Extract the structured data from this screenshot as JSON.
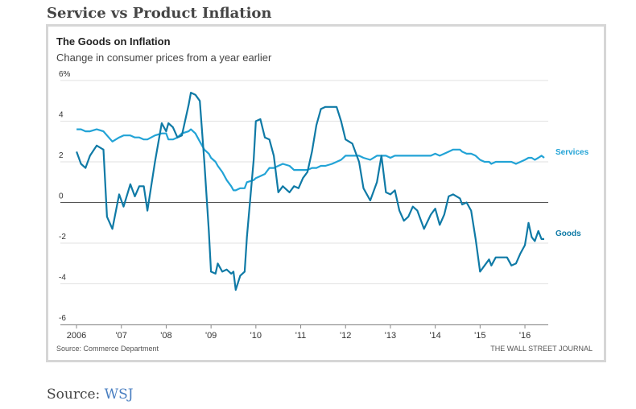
{
  "heading": "Service vs Product Inflation",
  "footer": {
    "label": "Source:",
    "link": "WSJ"
  },
  "chart_data": {
    "type": "line",
    "title": "The Goods on Inflation",
    "subtitle": "Change in consumer prices from a year earlier",
    "source": "Source: Commerce Department",
    "credit": "THE WALL STREET JOURNAL",
    "x": [
      2006.0,
      2006.1,
      2006.2,
      2006.3,
      2006.45,
      2006.6,
      2006.68,
      2006.8,
      2006.95,
      2007.05,
      2007.2,
      2007.3,
      2007.4,
      2007.5,
      2007.58,
      2007.75,
      2007.9,
      2008.0,
      2008.05,
      2008.15,
      2008.25,
      2008.35,
      2008.5,
      2008.55,
      2008.65,
      2008.75,
      2008.85,
      2008.95,
      2009.0,
      2009.1,
      2009.15,
      2009.25,
      2009.35,
      2009.45,
      2009.5,
      2009.55,
      2009.65,
      2009.75,
      2009.8,
      2009.95,
      2010.0,
      2010.1,
      2010.2,
      2010.3,
      2010.4,
      2010.5,
      2010.6,
      2010.75,
      2010.85,
      2010.95,
      2011.05,
      2011.15,
      2011.25,
      2011.35,
      2011.45,
      2011.55,
      2011.7,
      2011.8,
      2011.9,
      2012.0,
      2012.15,
      2012.3,
      2012.4,
      2012.55,
      2012.7,
      2012.8,
      2012.9,
      2013.0,
      2013.1,
      2013.2,
      2013.3,
      2013.4,
      2013.5,
      2013.6,
      2013.75,
      2013.9,
      2014.0,
      2014.1,
      2014.2,
      2014.3,
      2014.4,
      2014.55,
      2014.6,
      2014.7,
      2014.8,
      2014.9,
      2015.0,
      2015.1,
      2015.2,
      2015.25,
      2015.35,
      2015.5,
      2015.6,
      2015.7,
      2015.8,
      2015.9,
      2016.0,
      2016.08,
      2016.15,
      2016.22,
      2016.3,
      2016.37,
      2016.43
    ],
    "series": [
      {
        "name": "Services",
        "color": "#22a3d6",
        "values": [
          3.6,
          3.6,
          3.5,
          3.5,
          3.6,
          3.5,
          3.3,
          3.0,
          3.2,
          3.3,
          3.3,
          3.2,
          3.2,
          3.1,
          3.1,
          3.3,
          3.4,
          3.4,
          3.1,
          3.1,
          3.2,
          3.4,
          3.5,
          3.6,
          3.4,
          3.0,
          2.6,
          2.4,
          2.2,
          2.0,
          1.8,
          1.5,
          1.1,
          0.8,
          0.6,
          0.6,
          0.7,
          0.7,
          1.0,
          1.1,
          1.2,
          1.3,
          1.4,
          1.7,
          1.7,
          1.8,
          1.9,
          1.8,
          1.6,
          1.6,
          1.6,
          1.6,
          1.7,
          1.7,
          1.8,
          1.8,
          1.9,
          2.0,
          2.1,
          2.3,
          2.3,
          2.3,
          2.2,
          2.1,
          2.3,
          2.3,
          2.3,
          2.2,
          2.3,
          2.3,
          2.3,
          2.3,
          2.3,
          2.3,
          2.3,
          2.3,
          2.4,
          2.3,
          2.4,
          2.5,
          2.6,
          2.6,
          2.5,
          2.4,
          2.4,
          2.3,
          2.1,
          2.0,
          2.0,
          1.9,
          2.0,
          2.0,
          2.0,
          2.0,
          1.9,
          2.0,
          2.1,
          2.2,
          2.2,
          2.1,
          2.2,
          2.3,
          2.2
        ]
      },
      {
        "name": "Goods",
        "color": "#0f7aa6",
        "values": [
          2.5,
          1.9,
          1.7,
          2.3,
          2.8,
          2.6,
          -0.7,
          -1.3,
          0.4,
          -0.2,
          0.9,
          0.3,
          0.8,
          0.8,
          -0.4,
          2.0,
          3.9,
          3.5,
          3.9,
          3.7,
          3.2,
          3.3,
          4.8,
          5.4,
          5.3,
          5.0,
          2.0,
          -1.4,
          -3.4,
          -3.5,
          -3.0,
          -3.4,
          -3.3,
          -3.5,
          -3.4,
          -4.3,
          -3.6,
          -3.4,
          -1.7,
          2.1,
          4.0,
          4.1,
          3.2,
          3.1,
          2.3,
          0.5,
          0.8,
          0.5,
          0.8,
          0.7,
          1.2,
          1.5,
          2.5,
          3.8,
          4.6,
          4.7,
          4.7,
          4.7,
          4.0,
          3.1,
          2.9,
          2.0,
          0.7,
          0.1,
          1.0,
          2.3,
          0.5,
          0.4,
          0.6,
          -0.4,
          -0.9,
          -0.7,
          -0.2,
          -0.4,
          -1.3,
          -0.6,
          -0.3,
          -1.1,
          -0.6,
          0.3,
          0.4,
          0.2,
          -0.1,
          0.0,
          -0.4,
          -1.8,
          -3.4,
          -3.1,
          -2.8,
          -3.1,
          -2.7,
          -2.7,
          -2.7,
          -3.1,
          -3.0,
          -2.5,
          -2.1,
          -1.0,
          -1.7,
          -1.9,
          -1.4,
          -1.8,
          -1.8
        ]
      }
    ],
    "xlim": [
      2005.64,
      2016.52
    ],
    "xticks": [
      2006,
      {
        "value": 2007,
        "label": "'07"
      },
      {
        "value": 2008,
        "label": "'08"
      },
      {
        "value": 2009,
        "label": "'09"
      },
      {
        "value": 2010,
        "label": "'10"
      },
      {
        "value": 2011,
        "label": "'11"
      },
      {
        "value": 2012,
        "label": "'12"
      },
      {
        "value": 2013,
        "label": "'13"
      },
      {
        "value": 2014,
        "label": "'14"
      },
      {
        "value": 2015,
        "label": "'15"
      },
      {
        "value": 2016,
        "label": "'16"
      }
    ],
    "ylim": [
      -6,
      6
    ],
    "yticks": [
      {
        "value": 6,
        "label": "6%"
      },
      4,
      2,
      0,
      -2,
      -4,
      -6
    ],
    "grid": true
  }
}
